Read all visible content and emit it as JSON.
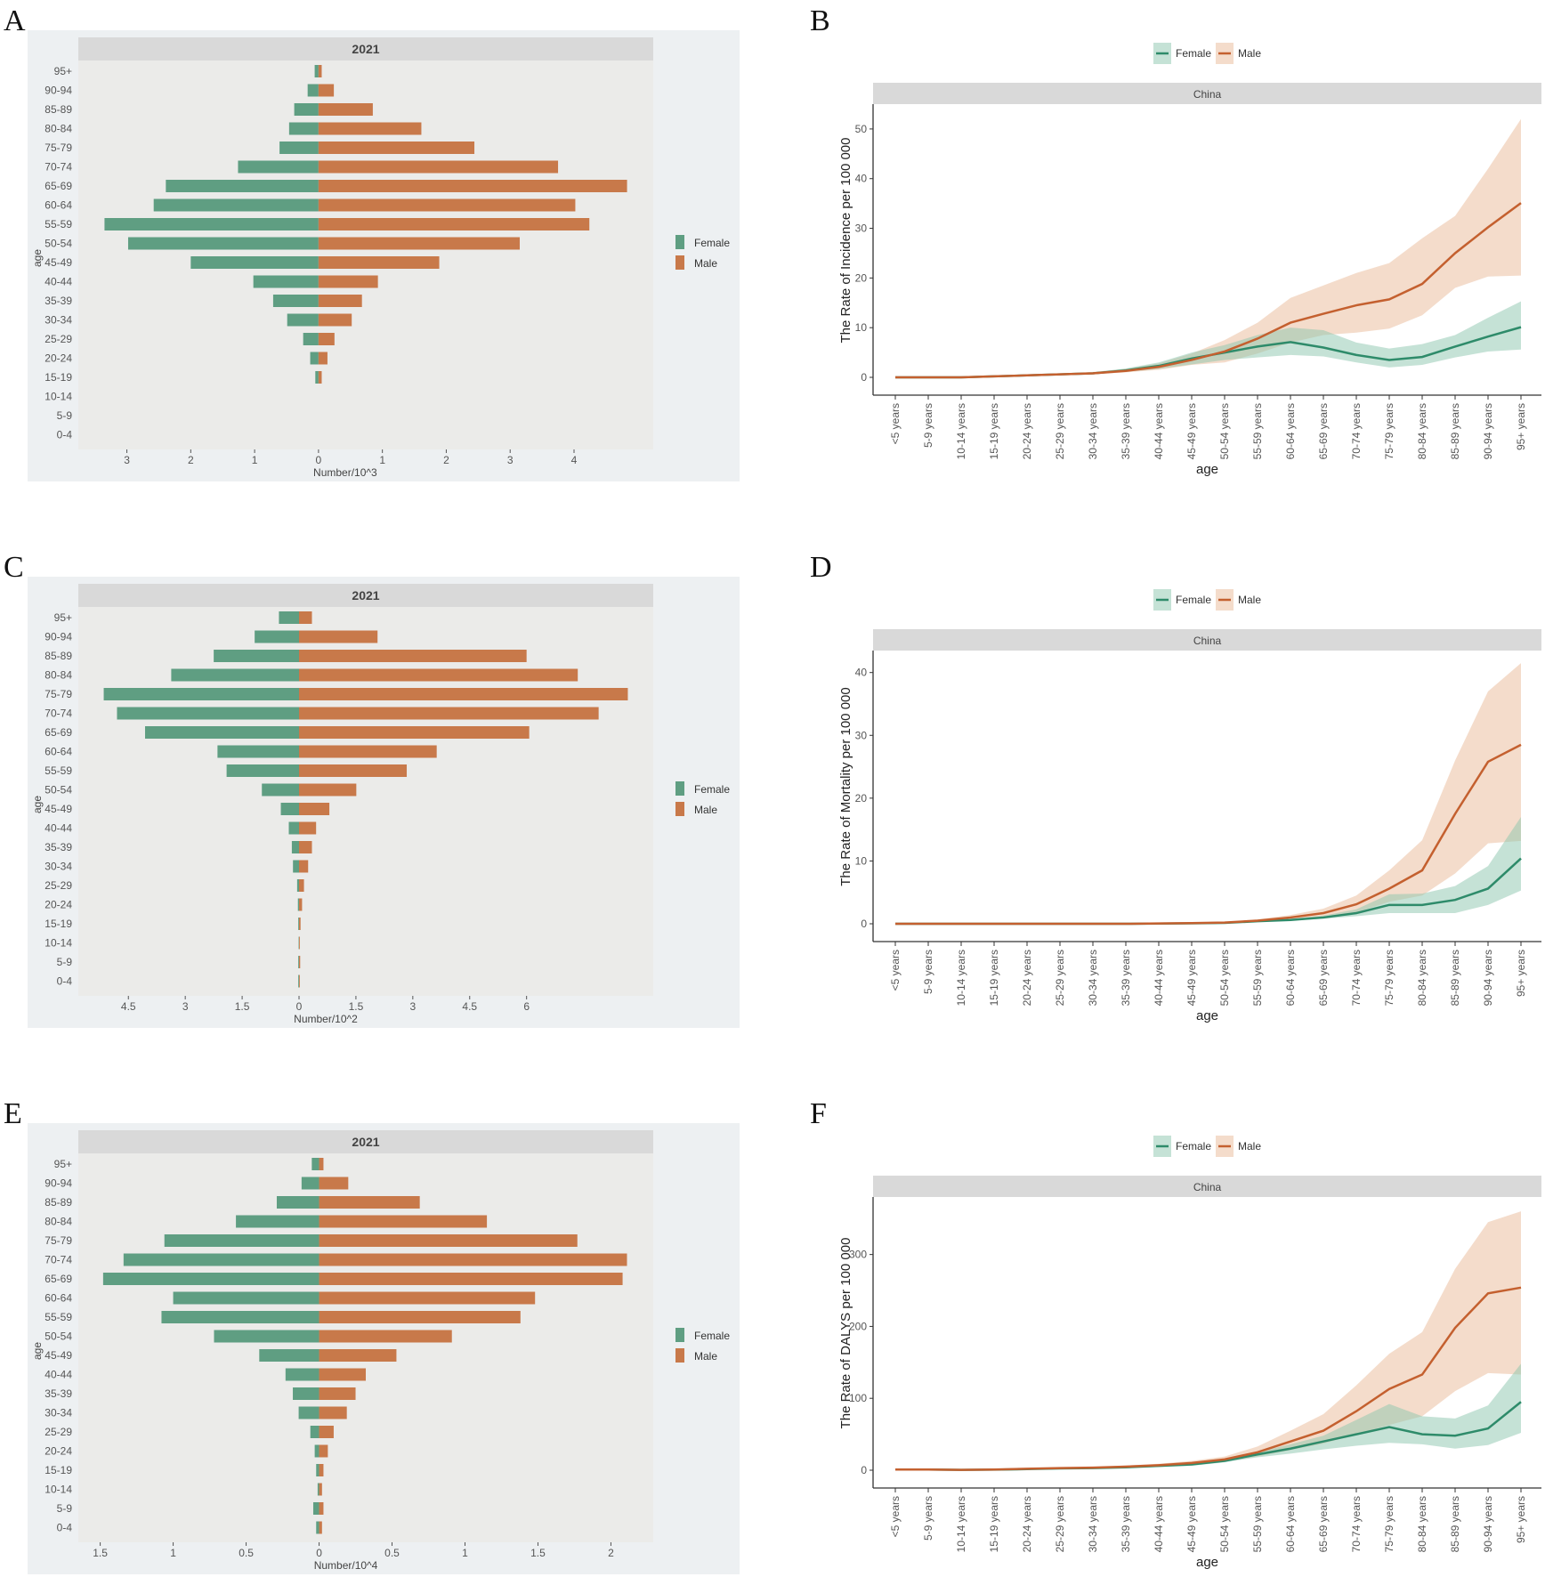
{
  "colors": {
    "female_bar": "#5f9e82",
    "male_bar": "#c8794a",
    "female_line": "#2e8b6a",
    "male_line": "#c4602f",
    "female_ribbon": "#8cc6ad",
    "male_ribbon": "#e9b998"
  },
  "chart_data": [
    {
      "panel": "A",
      "type": "bar",
      "orientation": "horizontal-pyramid",
      "strip": "2021",
      "xlabel": "Number/10^3",
      "ylabel": "age",
      "legend": [
        "Female",
        "Male"
      ],
      "legend_position": "right",
      "categories": [
        "95+",
        "90-94",
        "85-89",
        "80-84",
        "75-79",
        "70-74",
        "65-69",
        "60-64",
        "55-59",
        "50-54",
        "45-49",
        "40-44",
        "35-39",
        "30-34",
        "25-29",
        "20-24",
        "15-19",
        "10-14",
        "5-9",
        "0-4"
      ],
      "series": [
        {
          "name": "Female",
          "values": [
            0.06,
            0.17,
            0.38,
            0.46,
            0.61,
            1.26,
            2.39,
            2.58,
            3.35,
            2.98,
            2.0,
            1.02,
            0.71,
            0.49,
            0.24,
            0.13,
            0.05,
            0,
            0,
            0
          ]
        },
        {
          "name": "Male",
          "values": [
            0.05,
            0.24,
            0.85,
            1.61,
            2.44,
            3.75,
            4.83,
            4.02,
            4.24,
            3.15,
            1.89,
            0.93,
            0.68,
            0.52,
            0.25,
            0.14,
            0.05,
            0,
            0,
            0
          ]
        }
      ],
      "xticks": [
        -3,
        -2,
        -1,
        0,
        1,
        2,
        3,
        4
      ],
      "xtick_labels": [
        "3",
        "2",
        "1",
        "0",
        "1",
        "2",
        "3",
        "4"
      ],
      "xlim": [
        -3.76,
        5.24
      ]
    },
    {
      "panel": "B",
      "type": "line",
      "strip": "China",
      "xlabel": "age",
      "ylabel": "The Rate of Incidence  per 100 000",
      "legend": [
        "Female",
        "Male"
      ],
      "legend_position": "top",
      "x": [
        "<5 years",
        "5-9 years",
        "10-14 years",
        "15-19 years",
        "20-24 years",
        "25-29 years",
        "30-34 years",
        "35-39 years",
        "40-44 years",
        "45-49 years",
        "50-54 years",
        "55-59 years",
        "60-64 years",
        "65-69 years",
        "70-74 years",
        "75-79 years",
        "80-84 years",
        "85-89 years",
        "90-94 years",
        "95+ years"
      ],
      "series": [
        {
          "name": "Female",
          "values": [
            0,
            0,
            0,
            0.2,
            0.4,
            0.6,
            0.8,
            1.4,
            2.3,
            3.8,
            5.0,
            6.2,
            7.1,
            6.0,
            4.5,
            3.5,
            4.1,
            6.2,
            8.2,
            10.1
          ],
          "lower": [
            0,
            0,
            0,
            0.1,
            0.3,
            0.5,
            0.7,
            1.1,
            1.7,
            2.6,
            3.5,
            4.0,
            4.5,
            4.2,
            3.0,
            2.0,
            2.5,
            4.0,
            5.2,
            5.6
          ],
          "upper": [
            0,
            0,
            0,
            0.3,
            0.5,
            0.7,
            1.0,
            1.8,
            3.0,
            5.0,
            6.5,
            8.5,
            10.0,
            9.5,
            7.0,
            5.8,
            6.7,
            8.5,
            12.0,
            15.3
          ]
        },
        {
          "name": "Male",
          "values": [
            0,
            0,
            0,
            0.2,
            0.4,
            0.6,
            0.8,
            1.3,
            2.1,
            3.5,
            5.2,
            7.8,
            11.0,
            12.8,
            14.5,
            15.7,
            18.8,
            25.0,
            30.2,
            35.1
          ],
          "lower": [
            0,
            0,
            0,
            0.1,
            0.3,
            0.5,
            0.6,
            1.0,
            1.5,
            2.5,
            3.0,
            4.8,
            7.0,
            8.5,
            9.0,
            9.8,
            12.5,
            18.0,
            20.3,
            20.5
          ],
          "upper": [
            0,
            0,
            0,
            0.3,
            0.6,
            0.8,
            1.1,
            1.7,
            2.8,
            4.8,
            7.5,
            11.0,
            16.0,
            18.5,
            21.0,
            23.0,
            28.0,
            32.5,
            42.0,
            52.0
          ]
        }
      ],
      "yticks": [
        0,
        10,
        20,
        30,
        40,
        50
      ],
      "ylim": [
        0,
        55
      ]
    },
    {
      "panel": "C",
      "type": "bar",
      "orientation": "horizontal-pyramid",
      "strip": "2021",
      "xlabel": "Number/10^2",
      "ylabel": "age",
      "legend": [
        "Female",
        "Male"
      ],
      "legend_position": "right",
      "categories": [
        "95+",
        "90-94",
        "85-89",
        "80-84",
        "75-79",
        "70-74",
        "65-69",
        "60-64",
        "55-59",
        "50-54",
        "45-49",
        "40-44",
        "35-39",
        "30-34",
        "25-29",
        "20-24",
        "15-19",
        "10-14",
        "5-9",
        "0-4"
      ],
      "series": [
        {
          "name": "Female",
          "values": [
            0.53,
            1.17,
            2.25,
            3.37,
            5.15,
            4.8,
            4.06,
            2.15,
            1.91,
            0.98,
            0.48,
            0.27,
            0.19,
            0.16,
            0.05,
            0.03,
            0.02,
            0.01,
            0.02,
            0.02
          ]
        },
        {
          "name": "Male",
          "values": [
            0.34,
            2.07,
            6.0,
            7.35,
            8.67,
            7.9,
            6.07,
            3.63,
            2.84,
            1.51,
            0.8,
            0.45,
            0.34,
            0.24,
            0.13,
            0.08,
            0.04,
            0.02,
            0.03,
            0.02
          ]
        }
      ],
      "xticks": [
        -4.5,
        -3,
        -1.5,
        0,
        1.5,
        3,
        4.5,
        6
      ],
      "xtick_labels": [
        "4.5",
        "3",
        "1.5",
        "0",
        "1.5",
        "3",
        "4.5",
        "6"
      ],
      "xlim": [
        -5.82,
        9.34
      ]
    },
    {
      "panel": "D",
      "type": "line",
      "strip": "China",
      "xlabel": "age",
      "ylabel": "The Rate of Mortality  per 100 000",
      "legend": [
        "Female",
        "Male"
      ],
      "legend_position": "top",
      "x": [
        "<5 years",
        "5-9 years",
        "10-14 years",
        "15-19 years",
        "20-24 years",
        "25-29 years",
        "30-34 years",
        "35-39 years",
        "40-44 years",
        "45-49 years",
        "50-54 years",
        "55-59 years",
        "60-64 years",
        "65-69 years",
        "70-74 years",
        "75-79 years",
        "80-84 years",
        "85-89 years",
        "90-94 years",
        "95+ years"
      ],
      "series": [
        {
          "name": "Female",
          "values": [
            0,
            0,
            0,
            0,
            0,
            0,
            0,
            0,
            0.03,
            0.07,
            0.15,
            0.4,
            0.6,
            1.0,
            1.7,
            3.0,
            3.0,
            3.8,
            5.6,
            10.4
          ],
          "lower": [
            0,
            0,
            0,
            0,
            0,
            0,
            0,
            0,
            0.02,
            0.05,
            0.1,
            0.3,
            0.5,
            0.8,
            1.2,
            1.7,
            1.7,
            1.7,
            3.0,
            5.3
          ],
          "upper": [
            0,
            0,
            0,
            0,
            0,
            0,
            0,
            0,
            0.05,
            0.1,
            0.2,
            0.5,
            0.8,
            1.3,
            2.3,
            4.7,
            4.8,
            6.0,
            9.2,
            17.0
          ]
        },
        {
          "name": "Male",
          "values": [
            0,
            0,
            0,
            0,
            0,
            0,
            0,
            0,
            0.05,
            0.1,
            0.2,
            0.5,
            1.0,
            1.7,
            3.1,
            5.6,
            8.5,
            17.5,
            25.8,
            28.5
          ],
          "lower": [
            0,
            0,
            0,
            0,
            0,
            0,
            0,
            0,
            0.03,
            0.07,
            0.1,
            0.3,
            0.6,
            1.1,
            1.8,
            3.5,
            4.5,
            8.0,
            12.8,
            13.2
          ],
          "upper": [
            0,
            0,
            0,
            0,
            0,
            0,
            0,
            0,
            0.08,
            0.15,
            0.3,
            0.7,
            1.4,
            2.4,
            4.5,
            8.5,
            13.3,
            26.0,
            37.0,
            41.5
          ]
        }
      ],
      "yticks": [
        0,
        10,
        20,
        30,
        40
      ],
      "ylim": [
        0,
        43.5
      ]
    },
    {
      "panel": "E",
      "type": "bar",
      "orientation": "horizontal-pyramid",
      "strip": "2021",
      "xlabel": "Number/10^4",
      "ylabel": "age",
      "legend": [
        "Female",
        "Male"
      ],
      "legend_position": "right",
      "categories": [
        "95+",
        "90-94",
        "85-89",
        "80-84",
        "75-79",
        "70-74",
        "65-69",
        "60-64",
        "55-59",
        "50-54",
        "45-49",
        "40-44",
        "35-39",
        "30-34",
        "25-29",
        "20-24",
        "15-19",
        "10-14",
        "5-9",
        "0-4"
      ],
      "series": [
        {
          "name": "Female",
          "values": [
            0.05,
            0.12,
            0.29,
            0.57,
            1.06,
            1.34,
            1.48,
            1.0,
            1.08,
            0.72,
            0.41,
            0.23,
            0.18,
            0.14,
            0.06,
            0.03,
            0.02,
            0.01,
            0.04,
            0.02
          ]
        },
        {
          "name": "Male",
          "values": [
            0.03,
            0.2,
            0.69,
            1.15,
            1.77,
            2.11,
            2.08,
            1.48,
            1.38,
            0.91,
            0.53,
            0.32,
            0.25,
            0.19,
            0.1,
            0.06,
            0.03,
            0.02,
            0.03,
            0.02
          ]
        }
      ],
      "xticks": [
        -1.5,
        -1,
        -0.5,
        0,
        0.5,
        1,
        1.5,
        2
      ],
      "xtick_labels": [
        "1.5",
        "1",
        "0.5",
        "0",
        "0.5",
        "1",
        "1.5",
        "2"
      ],
      "xlim": [
        -1.65,
        2.29
      ]
    },
    {
      "panel": "F",
      "type": "line",
      "strip": "China",
      "xlabel": "age",
      "ylabel": "The Rate of DALYS  per 100 000",
      "legend": [
        "Female",
        "Male"
      ],
      "legend_position": "top",
      "x": [
        "<5 years",
        "5-9 years",
        "10-14 years",
        "15-19 years",
        "20-24 years",
        "25-29 years",
        "30-34 years",
        "35-39 years",
        "40-44 years",
        "45-49 years",
        "50-54 years",
        "55-59 years",
        "60-64 years",
        "65-69 years",
        "70-74 years",
        "75-79 years",
        "80-84 years",
        "85-89 years",
        "90-94 years",
        "95+ years"
      ],
      "series": [
        {
          "name": "Female",
          "values": [
            1,
            1,
            0.5,
            0.8,
            1.5,
            2.5,
            3,
            4,
            6,
            8,
            13,
            22,
            30,
            40,
            50,
            60,
            50,
            48,
            58,
            95
          ],
          "lower": [
            1,
            1,
            0.5,
            0.6,
            1.2,
            2,
            2.5,
            3.2,
            4.5,
            6,
            11,
            18,
            23,
            29,
            34,
            38,
            36,
            30,
            35,
            52
          ],
          "upper": [
            1,
            1.2,
            0.7,
            1,
            1.8,
            3,
            3.6,
            5,
            7.5,
            10,
            15,
            25,
            36,
            48,
            70,
            92,
            75,
            72,
            90,
            148
          ]
        },
        {
          "name": "Male",
          "values": [
            1,
            1,
            0.5,
            1,
            2,
            3,
            3.5,
            5,
            7,
            10,
            15,
            25,
            40,
            55,
            82,
            113,
            133,
            198,
            246,
            254
          ],
          "lower": [
            1,
            1,
            0.5,
            0.8,
            1.5,
            2.5,
            3,
            4,
            5.5,
            8,
            12,
            19,
            28,
            37,
            50,
            63,
            75,
            110,
            135,
            133
          ],
          "upper": [
            1,
            1.2,
            0.8,
            1.3,
            2.5,
            3.5,
            4.5,
            6.5,
            9,
            13,
            19,
            33,
            55,
            78,
            118,
            162,
            192,
            280,
            345,
            360
          ]
        }
      ],
      "yticks": [
        0,
        100,
        200,
        300
      ],
      "ylim": [
        0,
        380
      ]
    }
  ]
}
